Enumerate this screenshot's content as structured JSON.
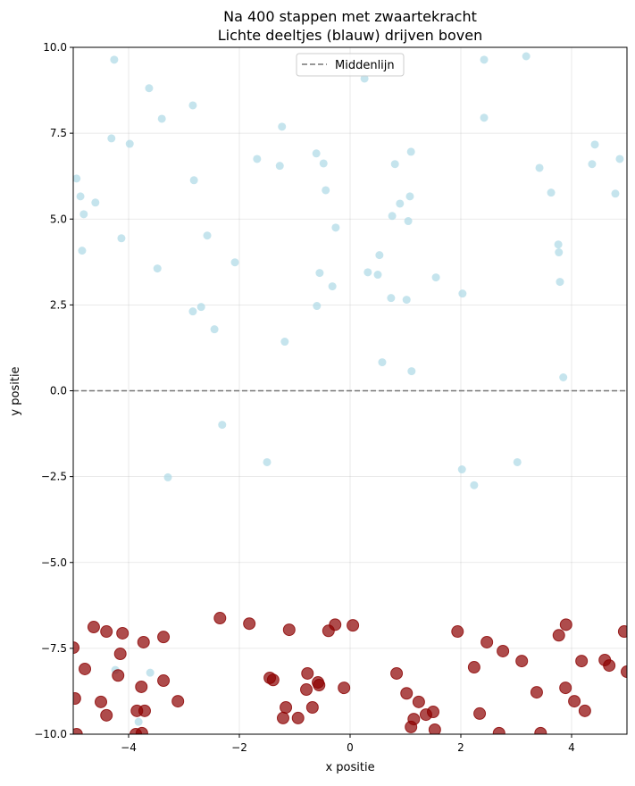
{
  "chart_data": {
    "type": "scatter",
    "title": [
      "Na 400 stappen met zwaartekracht",
      "Lichte deeltjes (blauw) drijven boven"
    ],
    "xlabel": "x positie",
    "ylabel": "y positie",
    "xlim": [
      -5,
      5
    ],
    "ylim": [
      -10,
      10
    ],
    "xticks": [
      -4,
      -2,
      0,
      2,
      4
    ],
    "xtick_labels": [
      "−4",
      "−2",
      "0",
      "2",
      "4"
    ],
    "yticks": [
      -10,
      -7.5,
      -5,
      -2.5,
      0,
      2.5,
      5,
      7.5,
      10
    ],
    "ytick_labels": [
      "−10.0",
      "−7.5",
      "−5.0",
      "−2.5",
      "0.0",
      "2.5",
      "5.0",
      "7.5",
      "10.0"
    ],
    "grid": true,
    "legend": {
      "position": "top-center",
      "entries": [
        "Middenlijn"
      ]
    },
    "hline": {
      "y": 0,
      "label": "Middenlijn",
      "color": "#777777",
      "style": "dashed"
    },
    "series": [
      {
        "color": "#add8e6",
        "points": [
          [
            -4.26,
            9.64
          ],
          [
            -3.63,
            8.81
          ],
          [
            -2.84,
            8.31
          ],
          [
            -3.4,
            7.92
          ],
          [
            -4.31,
            7.35
          ],
          [
            -3.98,
            7.19
          ],
          [
            -1.23,
            7.69
          ],
          [
            0.26,
            9.09
          ],
          [
            3.18,
            9.74
          ],
          [
            2.42,
            9.64
          ],
          [
            2.42,
            7.95
          ],
          [
            4.42,
            7.17
          ],
          [
            4.37,
            6.6
          ],
          [
            4.87,
            6.75
          ],
          [
            3.42,
            6.49
          ],
          [
            3.63,
            5.77
          ],
          [
            4.79,
            5.74
          ],
          [
            -1.68,
            6.75
          ],
          [
            -1.27,
            6.55
          ],
          [
            -0.61,
            6.91
          ],
          [
            -0.48,
            6.62
          ],
          [
            0.81,
            6.6
          ],
          [
            1.1,
            6.96
          ],
          [
            -4.94,
            6.18
          ],
          [
            -4.87,
            5.66
          ],
          [
            -4.81,
            5.14
          ],
          [
            -4.6,
            5.48
          ],
          [
            -4.84,
            4.08
          ],
          [
            -4.13,
            4.44
          ],
          [
            -2.82,
            6.13
          ],
          [
            -2.58,
            4.52
          ],
          [
            -3.48,
            3.56
          ],
          [
            -2.08,
            3.74
          ],
          [
            -0.44,
            5.84
          ],
          [
            0.9,
            5.45
          ],
          [
            1.08,
            5.66
          ],
          [
            0.76,
            5.09
          ],
          [
            1.05,
            4.94
          ],
          [
            -0.26,
            4.75
          ],
          [
            0.53,
            3.95
          ],
          [
            -0.55,
            3.43
          ],
          [
            0.32,
            3.45
          ],
          [
            0.5,
            3.38
          ],
          [
            1.55,
            3.3
          ],
          [
            -0.32,
            3.04
          ],
          [
            0.74,
            2.7
          ],
          [
            1.02,
            2.65
          ],
          [
            2.03,
            2.83
          ],
          [
            3.76,
            4.26
          ],
          [
            3.77,
            4.03
          ],
          [
            3.79,
            3.17
          ],
          [
            3.85,
            0.39
          ],
          [
            -2.84,
            2.31
          ],
          [
            -2.69,
            2.44
          ],
          [
            -0.6,
            2.47
          ],
          [
            -2.45,
            1.79
          ],
          [
            -1.18,
            1.43
          ],
          [
            0.58,
            0.83
          ],
          [
            1.11,
            0.57
          ],
          [
            -2.31,
            -0.99
          ],
          [
            -1.5,
            -2.08
          ],
          [
            -3.29,
            -2.52
          ],
          [
            2.02,
            -2.29
          ],
          [
            2.24,
            -2.75
          ],
          [
            3.02,
            -2.08
          ],
          [
            -4.24,
            -8.13
          ],
          [
            -3.61,
            -8.21
          ],
          [
            -3.82,
            -9.64
          ]
        ]
      },
      {
        "color": "#8b0000",
        "points": [
          [
            -5,
            -7.48
          ],
          [
            -4.97,
            -8.96
          ],
          [
            -4.94,
            -10
          ],
          [
            -4.79,
            -8.1
          ],
          [
            -4.63,
            -6.88
          ],
          [
            -4.5,
            -9.06
          ],
          [
            -4.4,
            -7.01
          ],
          [
            -4.4,
            -9.45
          ],
          [
            -4.19,
            -8.29
          ],
          [
            -4.15,
            -7.66
          ],
          [
            -4.11,
            -7.06
          ],
          [
            -3.85,
            -9.32
          ],
          [
            -3.77,
            -8.62
          ],
          [
            -3.73,
            -7.32
          ],
          [
            -3.71,
            -9.32
          ],
          [
            -3.76,
            -9.97
          ],
          [
            -3.87,
            -10
          ],
          [
            -3.37,
            -7.17
          ],
          [
            -3.37,
            -8.44
          ],
          [
            -3.11,
            -9.04
          ],
          [
            -2.35,
            -6.62
          ],
          [
            -1.82,
            -6.78
          ],
          [
            -1.45,
            -8.36
          ],
          [
            -1.39,
            -8.42
          ],
          [
            -1.1,
            -6.96
          ],
          [
            -1.16,
            -9.22
          ],
          [
            -1.21,
            -9.53
          ],
          [
            -0.94,
            -9.53
          ],
          [
            -0.77,
            -8.23
          ],
          [
            -0.79,
            -8.7
          ],
          [
            -0.68,
            -9.22
          ],
          [
            -0.58,
            -8.49
          ],
          [
            -0.56,
            -8.57
          ],
          [
            -0.39,
            -6.99
          ],
          [
            -0.27,
            -6.81
          ],
          [
            -0.11,
            -8.65
          ],
          [
            0.05,
            -6.83
          ],
          [
            0.84,
            -8.23
          ],
          [
            1.02,
            -8.81
          ],
          [
            1.24,
            -9.06
          ],
          [
            1.37,
            -9.43
          ],
          [
            1.5,
            -9.35
          ],
          [
            1.15,
            -9.56
          ],
          [
            1.1,
            -9.79
          ],
          [
            1.53,
            -9.87
          ],
          [
            1.94,
            -7.01
          ],
          [
            2.47,
            -7.32
          ],
          [
            2.76,
            -7.58
          ],
          [
            3.1,
            -7.87
          ],
          [
            2.24,
            -8.05
          ],
          [
            2.34,
            -9.4
          ],
          [
            2.69,
            -9.97
          ],
          [
            3.37,
            -8.78
          ],
          [
            3.44,
            -9.97
          ],
          [
            3.77,
            -7.12
          ],
          [
            3.9,
            -6.81
          ],
          [
            3.89,
            -8.65
          ],
          [
            4.18,
            -7.87
          ],
          [
            4.05,
            -9.04
          ],
          [
            4.24,
            -9.32
          ],
          [
            4.6,
            -7.84
          ],
          [
            4.68,
            -8.0
          ],
          [
            4.95,
            -7.01
          ],
          [
            5.0,
            -8.18
          ]
        ]
      }
    ]
  }
}
